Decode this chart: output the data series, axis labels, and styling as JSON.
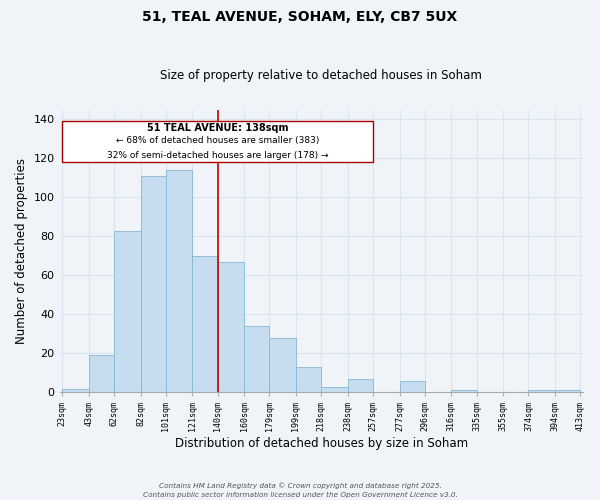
{
  "title": "51, TEAL AVENUE, SOHAM, ELY, CB7 5UX",
  "subtitle": "Size of property relative to detached houses in Soham",
  "xlabel": "Distribution of detached houses by size in Soham",
  "ylabel": "Number of detached properties",
  "bar_color": "#c5ddef",
  "bar_edge_color": "#88b8d4",
  "background_color": "#f0f4f8",
  "grid_color": "#d8e4ee",
  "annotation_box_color": "#ffffff",
  "annotation_box_edge": "#aa0000",
  "vline_color": "#cc0000",
  "vline_x": 140,
  "annotation_text_line1": "51 TEAL AVENUE: 138sqm",
  "annotation_text_line2": "← 68% of detached houses are smaller (383)",
  "annotation_text_line3": "32% of semi-detached houses are larger (178) →",
  "bin_edges": [
    23,
    43,
    62,
    82,
    101,
    121,
    140,
    160,
    179,
    199,
    218,
    238,
    257,
    277,
    296,
    316,
    335,
    355,
    374,
    394,
    413
  ],
  "counts": [
    2,
    19,
    83,
    111,
    114,
    70,
    67,
    34,
    28,
    13,
    3,
    7,
    0,
    6,
    0,
    1,
    0,
    0,
    1,
    1
  ],
  "ylim": [
    0,
    145
  ],
  "yticks": [
    0,
    20,
    40,
    60,
    80,
    100,
    120,
    140
  ],
  "footer_line1": "Contains HM Land Registry data © Crown copyright and database right 2025.",
  "footer_line2": "Contains public sector information licensed under the Open Government Licence v3.0."
}
